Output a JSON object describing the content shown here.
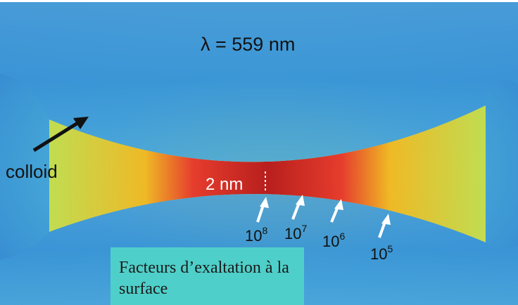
{
  "wavelength_label": "λ = 559 nm",
  "colloid_label": "colloid",
  "gap_label": "2 nm",
  "enhancement_levels": [
    {
      "base": "10",
      "exp": "8"
    },
    {
      "base": "10",
      "exp": "7"
    },
    {
      "base": "10",
      "exp": "6"
    },
    {
      "base": "10",
      "exp": "5"
    }
  ],
  "caption": "Facteurs d’exaltation à la surface",
  "colors": {
    "field_max": "#b5141c",
    "field_high": "#e8342a",
    "field_mid": "#f6e21c",
    "field_low": "#7fc9a8",
    "background": "#3a8fd6",
    "caption_box": "#4fcfc9"
  }
}
